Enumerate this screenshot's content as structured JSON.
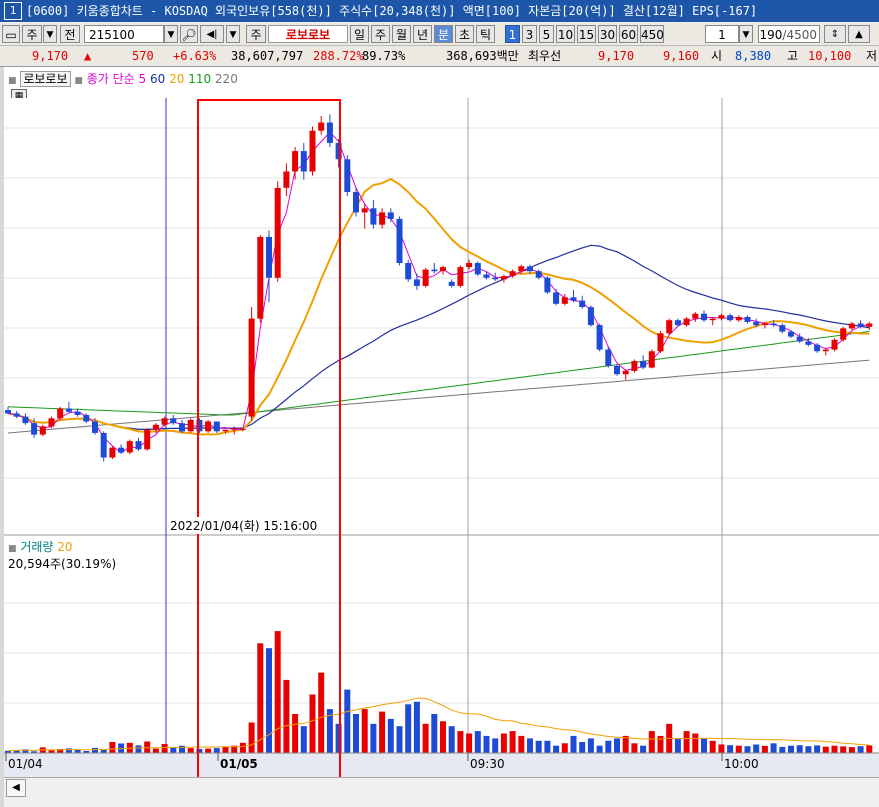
{
  "title_bar": {
    "window_num": "1",
    "text": "[0600] 키움종합차트 - KOSDAQ 외국인보유[558(천)] 주식수[20,348(천)] 액면[100] 자본금[20(억)] 결산[12월] EPS[-167]"
  },
  "toolbar": {
    "period_label": "주",
    "prev_label": "전",
    "code": "215100",
    "type_label": "주",
    "name": "로보로보",
    "periods": [
      "일",
      "주",
      "월",
      "년",
      "분",
      "초",
      "틱"
    ],
    "active_period": "분",
    "intervals": [
      "1",
      "3",
      "5",
      "10",
      "15",
      "30",
      "60",
      "450"
    ],
    "active_interval": "1",
    "count_select": "1",
    "count": "190",
    "count_total": "/4500"
  },
  "info": {
    "price": "9,170",
    "up_arrow": "▲",
    "change": "570",
    "change_pct": "+6.63%",
    "volume": "38,607,797",
    "volume_ratio": "288.72%",
    "turnover": "89.73%",
    "amount": "368,693백만",
    "best_ask_label": "최우선",
    "best_ask": "9,170",
    "best_bid": "9,160",
    "open_label": "시",
    "open": "8,380",
    "high_label": "고",
    "high": "10,100",
    "low_label": "저"
  },
  "legend": {
    "name": "로보로보",
    "ma_label": "종가 단순",
    "ma_periods": [
      "5",
      "60",
      "20",
      "110",
      "220"
    ],
    "volume_label": "거래량",
    "volume_ma": "20",
    "volume_value": "20,594주(30.19%)"
  },
  "crosshair_label": "2022/01/04(화) 15:16:00",
  "x_axis_labels": [
    "01/04",
    "01/05",
    "09:30",
    "10:00"
  ],
  "colors": {
    "up": "#e60000",
    "down": "#1e4bd6",
    "ma5": "#dd00dd",
    "ma20": "#f0a000",
    "ma60": "#1f2f9c",
    "ma110": "#1a9a1a",
    "ma220": "#777777",
    "highlight": "#ff0000"
  },
  "chart_data": {
    "type": "candlestick",
    "interval": "1min",
    "y_range": [
      5000,
      10300
    ],
    "volume_range": [
      0,
      80000
    ],
    "highlight_box": "around 01/05 market open",
    "ohlc": [
      [
        6480,
        6520,
        6430,
        6440
      ],
      [
        6440,
        6470,
        6380,
        6400
      ],
      [
        6400,
        6440,
        6300,
        6320
      ],
      [
        6320,
        6380,
        6140,
        6180
      ],
      [
        6180,
        6300,
        6160,
        6280
      ],
      [
        6280,
        6400,
        6260,
        6380
      ],
      [
        6380,
        6520,
        6360,
        6500
      ],
      [
        6500,
        6580,
        6440,
        6460
      ],
      [
        6460,
        6500,
        6400,
        6420
      ],
      [
        6420,
        6440,
        6320,
        6340
      ],
      [
        6340,
        6380,
        6180,
        6200
      ],
      [
        6200,
        6220,
        5850,
        5900
      ],
      [
        5900,
        6040,
        5880,
        6020
      ],
      [
        6020,
        6060,
        5940,
        5960
      ],
      [
        5960,
        6120,
        5940,
        6100
      ],
      [
        6100,
        6140,
        5980,
        6000
      ],
      [
        6000,
        6260,
        5980,
        6240
      ],
      [
        6240,
        6320,
        6200,
        6300
      ],
      [
        6300,
        6400,
        6280,
        6380
      ],
      [
        6380,
        6420,
        6300,
        6320
      ],
      [
        6320,
        6360,
        6200,
        6220
      ],
      [
        6220,
        6380,
        6200,
        6360
      ],
      [
        6360,
        6380,
        6200,
        6220
      ],
      [
        6220,
        6360,
        6200,
        6340
      ],
      [
        6340,
        6340,
        6200,
        6220
      ],
      [
        6220,
        6240,
        6190,
        6240
      ],
      [
        6250,
        6280,
        6180,
        6260
      ],
      [
        6240,
        6260,
        6220,
        6250
      ],
      [
        6400,
        7740,
        6350,
        7600
      ],
      [
        7600,
        8620,
        7550,
        8600
      ],
      [
        8600,
        8680,
        7800,
        8100
      ],
      [
        8100,
        9280,
        8050,
        9200
      ],
      [
        9200,
        9500,
        9100,
        9400
      ],
      [
        9400,
        9700,
        9300,
        9650
      ],
      [
        9650,
        9750,
        9300,
        9400
      ],
      [
        9400,
        9950,
        9350,
        9900
      ],
      [
        9900,
        10080,
        9850,
        10000
      ],
      [
        10000,
        10100,
        9700,
        9750
      ],
      [
        9750,
        9800,
        9450,
        9550
      ],
      [
        9550,
        9600,
        9100,
        9150
      ],
      [
        9150,
        9200,
        8850,
        8900
      ],
      [
        8900,
        9000,
        8700,
        8950
      ],
      [
        8950,
        9050,
        8700,
        8750
      ],
      [
        8750,
        8950,
        8700,
        8900
      ],
      [
        8900,
        8950,
        8780,
        8820
      ],
      [
        8820,
        8850,
        8250,
        8280
      ],
      [
        8280,
        8320,
        8050,
        8080
      ],
      [
        8080,
        8150,
        7950,
        8000
      ],
      [
        8000,
        8220,
        7980,
        8200
      ],
      [
        8200,
        8280,
        8150,
        8180
      ],
      [
        8180,
        8250,
        8140,
        8230
      ],
      [
        8050,
        8080,
        7980,
        8000
      ],
      [
        8000,
        8250,
        7980,
        8230
      ],
      [
        8230,
        8320,
        8200,
        8280
      ],
      [
        8280,
        8300,
        8120,
        8140
      ],
      [
        8140,
        8180,
        8080,
        8100
      ],
      [
        8100,
        8160,
        8060,
        8080
      ],
      [
        8080,
        8140,
        8040,
        8120
      ],
      [
        8120,
        8200,
        8100,
        8180
      ],
      [
        8180,
        8260,
        8150,
        8240
      ],
      [
        8240,
        8260,
        8150,
        8180
      ],
      [
        8180,
        8200,
        8080,
        8100
      ],
      [
        8100,
        8120,
        7900,
        7920
      ],
      [
        7920,
        7960,
        7760,
        7780
      ],
      [
        7780,
        7900,
        7760,
        7860
      ],
      [
        7860,
        7950,
        7800,
        7820
      ],
      [
        7820,
        7880,
        7720,
        7740
      ],
      [
        7740,
        7760,
        7500,
        7520
      ],
      [
        7520,
        7540,
        7200,
        7220
      ],
      [
        7220,
        7260,
        7000,
        7020
      ],
      [
        7020,
        7040,
        6900,
        6920
      ],
      [
        6920,
        6980,
        6850,
        6960
      ],
      [
        6960,
        7100,
        6940,
        7080
      ],
      [
        7080,
        7150,
        6980,
        7000
      ],
      [
        7000,
        7220,
        6990,
        7200
      ],
      [
        7200,
        7450,
        7180,
        7420
      ],
      [
        7420,
        7600,
        7400,
        7580
      ],
      [
        7580,
        7600,
        7500,
        7520
      ],
      [
        7520,
        7620,
        7500,
        7600
      ],
      [
        7600,
        7680,
        7560,
        7660
      ],
      [
        7660,
        7700,
        7560,
        7580
      ],
      [
        7580,
        7620,
        7520,
        7600
      ],
      [
        7600,
        7660,
        7580,
        7640
      ],
      [
        7640,
        7660,
        7560,
        7580
      ],
      [
        7580,
        7640,
        7560,
        7620
      ],
      [
        7620,
        7640,
        7540,
        7560
      ],
      [
        7560,
        7600,
        7500,
        7520
      ],
      [
        7520,
        7560,
        7480,
        7540
      ],
      [
        7540,
        7580,
        7500,
        7520
      ],
      [
        7520,
        7540,
        7420,
        7440
      ],
      [
        7440,
        7460,
        7360,
        7380
      ],
      [
        7380,
        7420,
        7300,
        7320
      ],
      [
        7320,
        7360,
        7260,
        7280
      ],
      [
        7280,
        7300,
        7180,
        7200
      ],
      [
        7200,
        7240,
        7150,
        7220
      ],
      [
        7220,
        7360,
        7200,
        7340
      ],
      [
        7340,
        7500,
        7320,
        7480
      ],
      [
        7480,
        7560,
        7460,
        7540
      ],
      [
        7540,
        7580,
        7480,
        7500
      ],
      [
        7500,
        7560,
        7460,
        7540
      ]
    ],
    "volume": [
      900,
      1200,
      1500,
      700,
      2300,
      1100,
      1600,
      1900,
      1400,
      800,
      2100,
      1300,
      4500,
      3900,
      4200,
      3100,
      4700,
      1800,
      3700,
      2400,
      3000,
      2000,
      1700,
      1800,
      2000,
      2600,
      3000,
      4200,
      12500,
      45000,
      43000,
      50000,
      30000,
      16000,
      11000,
      24000,
      33000,
      18000,
      12000,
      26000,
      16000,
      18000,
      12000,
      17000,
      14000,
      11000,
      20000,
      21000,
      12000,
      16000,
      13000,
      11000,
      9000,
      8000,
      9000,
      7000,
      6000,
      8000,
      9000,
      7000,
      6000,
      5000,
      5000,
      3000,
      4000,
      7000,
      4500,
      6000,
      3000,
      5000,
      6000,
      7000,
      4000,
      3000,
      9000,
      7000,
      12000,
      6000,
      9000,
      8000,
      6000,
      5000,
      3500,
      3200,
      3000,
      2800,
      3500,
      2900,
      4000,
      2500,
      3000,
      3200,
      2800,
      3100,
      2600,
      3000,
      2700,
      2400,
      2800,
      3100
    ],
    "volume_ma_peak": 20594
  }
}
